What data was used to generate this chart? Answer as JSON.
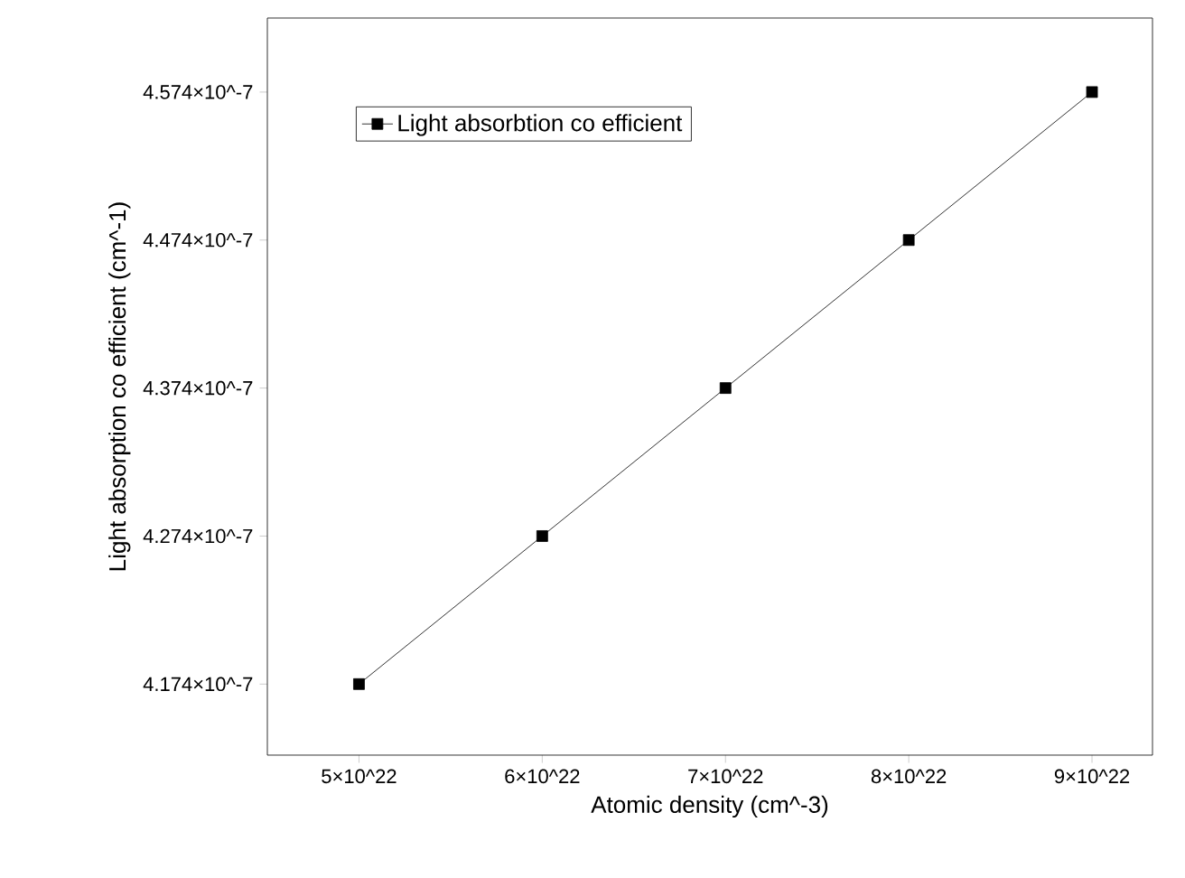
{
  "chart_data": {
    "type": "line",
    "xlabel": "Atomic density (cm^-3)",
    "ylabel": "Light absorption co efficient (cm^-1)",
    "x": [
      5e+22,
      6e+22,
      7e+22,
      8e+22,
      9e+22
    ],
    "series": [
      {
        "name": "Light absorbtion co efficient",
        "color": "#000000",
        "values": [
          4.174e-07,
          4.274e-07,
          4.374e-07,
          4.474e-07,
          4.574e-07
        ]
      }
    ],
    "xlim": [
      4.5e+22,
      9.33e+22
    ],
    "ylim": [
      4.126e-07,
      4.624e-07
    ],
    "xticks": [
      {
        "value": 5e+22,
        "label": "5×10^22"
      },
      {
        "value": 6e+22,
        "label": "6×10^22"
      },
      {
        "value": 7e+22,
        "label": "7×10^22"
      },
      {
        "value": 8e+22,
        "label": "8×10^22"
      },
      {
        "value": 9e+22,
        "label": "9×10^22"
      }
    ],
    "yticks": [
      {
        "value": 4.174e-07,
        "label": "4.174×10^-7"
      },
      {
        "value": 4.274e-07,
        "label": "4.274×10^-7"
      },
      {
        "value": 4.374e-07,
        "label": "4.374×10^-7"
      },
      {
        "value": 4.474e-07,
        "label": "4.474×10^-7"
      },
      {
        "value": 4.574e-07,
        "label": "4.574×10^-7"
      }
    ],
    "marker": "square",
    "line_style": "solid",
    "legend": "top left",
    "grid": false
  }
}
